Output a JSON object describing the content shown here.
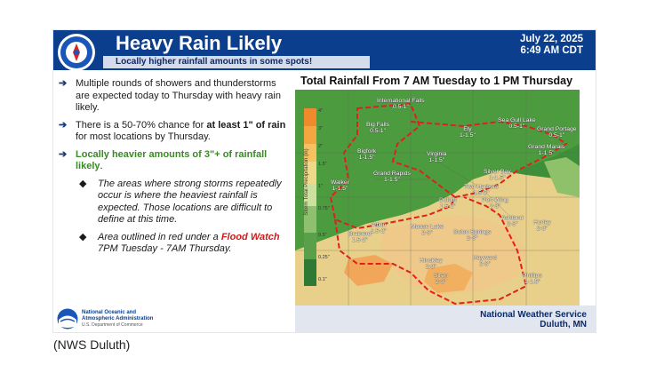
{
  "header": {
    "title": "Heavy Rain Likely",
    "subtitle": "Locally higher rainfall amounts in some spots!",
    "date_line1": "July 22, 2025",
    "date_line2": "6:49 AM CDT"
  },
  "bullets": {
    "b1": "Multiple rounds of showers and thunderstorms are expected today to Thursday with heavy rain likely.",
    "b2_a": "There is a 50-70% chance for ",
    "b2_b": "at least 1\" of rain",
    "b2_c": " for most locations by Thursday.",
    "b3": "Locally heavier amounts of 3\"+ of rainfall likely",
    "b3_period": ".",
    "sub1": "The areas where strong storms repeatedly occur is where the heaviest rainfall is expected. Those locations are difficult to define at this time.",
    "sub2_a": "Area outlined in red under a ",
    "sub2_b": "Flood Watch",
    "sub2_c": " 7PM Tuesday - 7AM Thursday."
  },
  "map": {
    "title": "Total Rainfall From 7 AM Tuesday to 1 PM Thursday",
    "legend_label": "Storm Total Precipitation (in)",
    "legend_ticks": [
      "4\"",
      "3\"",
      "2\"",
      "1.5\"",
      "1\"",
      "0.75\"",
      "0.5\"",
      "0.25\"",
      "0.1\""
    ],
    "cities": [
      {
        "name": "International Falls",
        "value": "0.5-1\""
      },
      {
        "name": "Big Falls",
        "value": "0.5-1\""
      },
      {
        "name": "Bigfork",
        "value": "1-1.5\""
      },
      {
        "name": "Walker",
        "value": "1-1.5\""
      },
      {
        "name": "Grand Rapids",
        "value": "1-1.5\""
      },
      {
        "name": "Virginia",
        "value": "1-1.5\""
      },
      {
        "name": "Ely",
        "value": "1-1.5\""
      },
      {
        "name": "Sea Gull Lake",
        "value": "0.5-1\""
      },
      {
        "name": "Grand Portage",
        "value": "0.5-1\""
      },
      {
        "name": "Grand Marais",
        "value": "1-1.5\""
      },
      {
        "name": "Silver Bay",
        "value": "1-1.5\""
      },
      {
        "name": "Two Harbors",
        "value": "1.5-2\""
      },
      {
        "name": "Duluth",
        "value": "1.5-2\""
      },
      {
        "name": "Port Wing",
        "value": "2-3\""
      },
      {
        "name": "Ashland",
        "value": "2-3\""
      },
      {
        "name": "Hurley",
        "value": "2-3\""
      },
      {
        "name": "Aitkin",
        "value": "1.5-2\""
      },
      {
        "name": "Brainerd",
        "value": "1.5-2\""
      },
      {
        "name": "Moose Lake",
        "value": "2-3\""
      },
      {
        "name": "Solon Springs",
        "value": "2-3\""
      },
      {
        "name": "Hinckley",
        "value": "2-3\""
      },
      {
        "name": "Hayward",
        "value": "2-3\""
      },
      {
        "name": "Siren",
        "value": "2-3\""
      },
      {
        "name": "Phillips",
        "value": "1-1.5\""
      }
    ]
  },
  "footer": {
    "noaa_line1": "National Oceanic and",
    "noaa_line2": "Atmospheric Administration",
    "noaa_line3": "U.S. Department of Commerce",
    "nws_line1": "National Weather Service",
    "nws_line2": "Duluth, MN"
  },
  "caption": "(NWS Duluth)",
  "colors": {
    "header": "#0b3f8e",
    "green_text": "#3a8a26",
    "red_text": "#d11a1a",
    "flood_watch_outline": "#e0201b"
  }
}
